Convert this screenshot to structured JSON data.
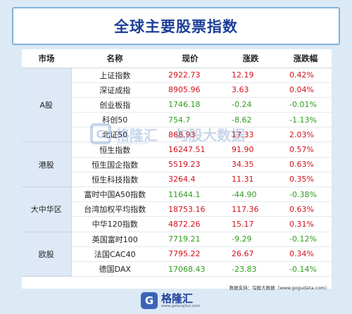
{
  "title": "全球主要股票指数",
  "headers": [
    "市场",
    "名称",
    "现价",
    "涨跌",
    "涨跌幅"
  ],
  "groups": [
    {
      "market": "A股",
      "rows": [
        {
          "name": "上证指数",
          "price": "2922.73",
          "change": "12.19",
          "pct": "0.42%",
          "dir": "up"
        },
        {
          "name": "深证成指",
          "price": "8905.96",
          "change": "3.63",
          "pct": "0.04%",
          "dir": "up"
        },
        {
          "name": "创业板指",
          "price": "1746.18",
          "change": "-0.24",
          "pct": "-0.01%",
          "dir": "down"
        },
        {
          "name": "科创50",
          "price": "754.7",
          "change": "-8.62",
          "pct": "-1.13%",
          "dir": "down"
        },
        {
          "name": "北证50",
          "price": "868.93",
          "change": "17.33",
          "pct": "2.03%",
          "dir": "up"
        }
      ]
    },
    {
      "market": "港股",
      "rows": [
        {
          "name": "恒生指数",
          "price": "16247.51",
          "change": "91.90",
          "pct": "0.57%",
          "dir": "up"
        },
        {
          "name": "恒生国企指数",
          "price": "5519.23",
          "change": "34.35",
          "pct": "0.63%",
          "dir": "up"
        },
        {
          "name": "恒生科技指数",
          "price": "3264.4",
          "change": "11.31",
          "pct": "0.35%",
          "dir": "up"
        }
      ]
    },
    {
      "market": "大中华区",
      "rows": [
        {
          "name": "富时中国A50指数",
          "price": "11644.1",
          "change": "-44.90",
          "pct": "-0.38%",
          "dir": "down"
        },
        {
          "name": "台湾加权平均指数",
          "price": "18753.16",
          "change": "117.36",
          "pct": "0.63%",
          "dir": "up"
        },
        {
          "name": "中华120指数",
          "price": "4872.26",
          "change": "15.17",
          "pct": "0.31%",
          "dir": "up"
        }
      ]
    },
    {
      "market": "欧股",
      "rows": [
        {
          "name": "英国富时100",
          "price": "7719.21",
          "change": "-9.29",
          "pct": "-0.12%",
          "dir": "down"
        },
        {
          "name": "法国CAC40",
          "price": "7795.22",
          "change": "26.67",
          "pct": "0.34%",
          "dir": "up"
        },
        {
          "name": "德国DAX",
          "price": "17068.43",
          "change": "-23.83",
          "pct": "-0.14%",
          "dir": "down"
        }
      ]
    }
  ],
  "watermark": {
    "logo_char": "G",
    "brand": "格隆汇",
    "sub": "gelonghui.com",
    "brand2": "勾股大数据"
  },
  "source": "数据支持：勾股大数据（www.gogudata.com）",
  "footer": {
    "logo_char": "G",
    "name": "格隆汇",
    "url": "www.gelonghui.com"
  },
  "colors": {
    "up": "#d0121b",
    "down": "#2f9e1f",
    "title": "#1f3f9a",
    "market_bg": "#dfe8f6"
  }
}
